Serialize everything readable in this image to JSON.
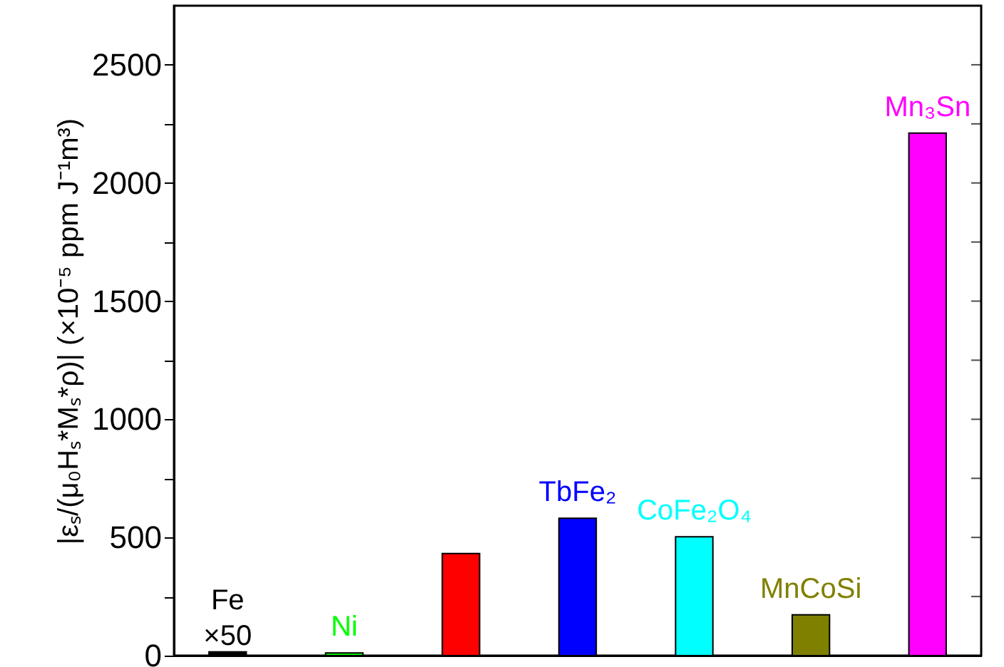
{
  "chart_data": {
    "type": "bar",
    "ylabel": "|εₛ/(μ₀Hₛ*Mₛ*ρ)| (×10⁻⁵ ppm J⁻¹m³)",
    "categories": [
      "Fe",
      "Ni",
      null,
      "TbFe₂",
      "CoFe₂O₄",
      "MnCoSi",
      "Mn₃Sn"
    ],
    "values": [
      16,
      11,
      432,
      581,
      503,
      173,
      2211
    ],
    "colors": [
      "#000000",
      "#00ff00",
      "#ff0000",
      "#0000ff",
      "#00ffff",
      "#808000",
      "#ff00ff"
    ],
    "ylim": [
      0,
      2750
    ],
    "yticks": [
      0,
      {
        "value": 250,
        "label": null
      },
      500,
      {
        "value": 750,
        "label": null
      },
      1000,
      {
        "value": 1250,
        "label": null
      },
      1500,
      {
        "value": 1750,
        "label": null
      },
      2000,
      {
        "value": 2250,
        "label": null
      },
      2500
    ],
    "annotations": [
      {
        "text": "×50",
        "x": "Fe",
        "y": 16
      }
    ],
    "grid": false
  }
}
